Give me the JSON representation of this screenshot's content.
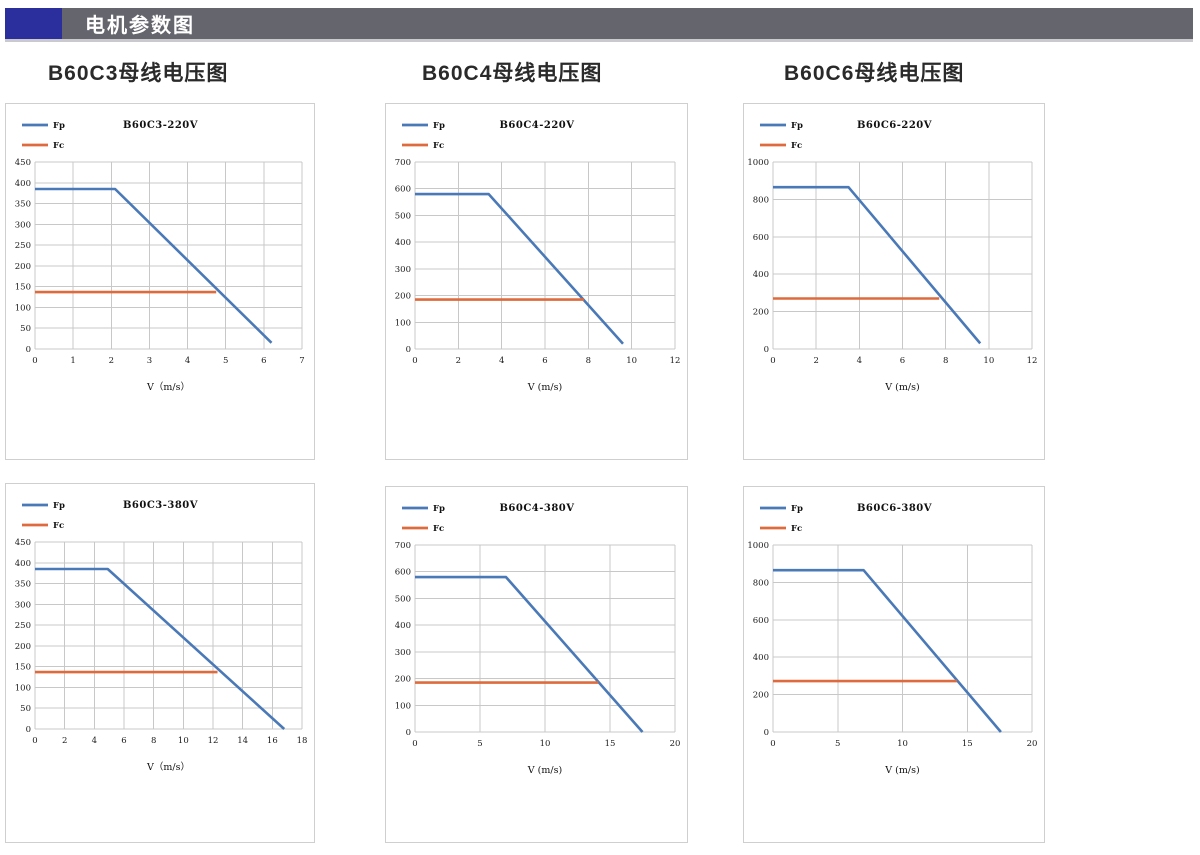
{
  "header": {
    "title": "电机参数图",
    "badge_color": "#2A2F9D",
    "bar_color": "#65656D"
  },
  "sections": [
    {
      "title": "B60C3母线电压图"
    },
    {
      "title": "B60C4母线电压图"
    },
    {
      "title": "B60C6母线电压图"
    }
  ],
  "theme": {
    "fp_color": "#4A79B8",
    "fc_color": "#DD6B3D",
    "grid_color": "#c8c8c8",
    "panel_border": "#cfcfcf"
  },
  "chart_data": [
    {
      "type": "line",
      "title": "B60C3-220V",
      "xlabel": "V（m/s）",
      "xlim": [
        0,
        7
      ],
      "ylim": [
        0,
        450
      ],
      "xticks": [
        0,
        1,
        2,
        3,
        4,
        5,
        6,
        7
      ],
      "yticks": [
        0,
        50,
        100,
        150,
        200,
        250,
        300,
        350,
        400,
        450
      ],
      "grid": true,
      "legend_position": "top-left",
      "series": [
        {
          "name": "Fp",
          "color": "#4A79B8",
          "points": [
            [
              0,
              385
            ],
            [
              2.1,
              385
            ],
            [
              6.2,
              15
            ]
          ]
        },
        {
          "name": "Fc",
          "color": "#DD6B3D",
          "points": [
            [
              0,
              137
            ],
            [
              4.75,
              137
            ]
          ]
        }
      ]
    },
    {
      "type": "line",
      "title": "B60C4-220V",
      "xlabel": "V (m/s)",
      "xlim": [
        0,
        12
      ],
      "ylim": [
        0,
        700
      ],
      "xticks": [
        0,
        2,
        4,
        6,
        8,
        10,
        12
      ],
      "yticks": [
        0,
        100,
        200,
        300,
        400,
        500,
        600,
        700
      ],
      "grid": true,
      "legend_position": "top-left",
      "series": [
        {
          "name": "Fp",
          "color": "#4A79B8",
          "points": [
            [
              0,
              580
            ],
            [
              3.4,
              580
            ],
            [
              9.6,
              20
            ]
          ]
        },
        {
          "name": "Fc",
          "color": "#DD6B3D",
          "points": [
            [
              0,
              185
            ],
            [
              7.8,
              185
            ]
          ]
        }
      ]
    },
    {
      "type": "line",
      "title": "B60C6-220V",
      "xlabel": "V (m/s)",
      "xlim": [
        0,
        12
      ],
      "ylim": [
        0,
        1000
      ],
      "xticks": [
        0,
        2,
        4,
        6,
        8,
        10,
        12
      ],
      "yticks": [
        0,
        200,
        400,
        600,
        800,
        1000
      ],
      "grid": true,
      "legend_position": "top-left",
      "series": [
        {
          "name": "Fp",
          "color": "#4A79B8",
          "points": [
            [
              0,
              865
            ],
            [
              3.5,
              865
            ],
            [
              9.6,
              30
            ]
          ]
        },
        {
          "name": "Fc",
          "color": "#DD6B3D",
          "points": [
            [
              0,
              270
            ],
            [
              7.7,
              270
            ]
          ]
        }
      ]
    },
    {
      "type": "line",
      "title": "B60C3-380V",
      "xlabel": "V（m/s）",
      "xlim": [
        0,
        18
      ],
      "ylim": [
        0,
        450
      ],
      "xticks": [
        0,
        2,
        4,
        6,
        8,
        10,
        12,
        14,
        16,
        18
      ],
      "yticks": [
        0,
        50,
        100,
        150,
        200,
        250,
        300,
        350,
        400,
        450
      ],
      "grid": true,
      "legend_position": "top-left",
      "series": [
        {
          "name": "Fp",
          "color": "#4A79B8",
          "points": [
            [
              0,
              385
            ],
            [
              4.9,
              385
            ],
            [
              16.8,
              0
            ]
          ]
        },
        {
          "name": "Fc",
          "color": "#DD6B3D",
          "points": [
            [
              0,
              137
            ],
            [
              12.3,
              137
            ]
          ]
        }
      ]
    },
    {
      "type": "line",
      "title": "B60C4-380V",
      "xlabel": "V (m/s)",
      "xlim": [
        0,
        20
      ],
      "ylim": [
        0,
        700
      ],
      "xticks": [
        0,
        5,
        10,
        15,
        20
      ],
      "yticks": [
        0,
        100,
        200,
        300,
        400,
        500,
        600,
        700
      ],
      "grid": true,
      "legend_position": "top-left",
      "series": [
        {
          "name": "Fp",
          "color": "#4A79B8",
          "points": [
            [
              0,
              580
            ],
            [
              7.0,
              580
            ],
            [
              17.5,
              0
            ]
          ]
        },
        {
          "name": "Fc",
          "color": "#DD6B3D",
          "points": [
            [
              0,
              185
            ],
            [
              14.1,
              185
            ]
          ]
        }
      ]
    },
    {
      "type": "line",
      "title": "B60C6-380V",
      "xlabel": "V (m/s)",
      "xlim": [
        0,
        20
      ],
      "ylim": [
        0,
        1000
      ],
      "xticks": [
        0,
        5,
        10,
        15,
        20
      ],
      "yticks": [
        0,
        200,
        400,
        600,
        800,
        1000
      ],
      "grid": true,
      "legend_position": "top-left",
      "series": [
        {
          "name": "Fp",
          "color": "#4A79B8",
          "points": [
            [
              0,
              865
            ],
            [
              7.0,
              865
            ],
            [
              17.6,
              0
            ]
          ]
        },
        {
          "name": "Fc",
          "color": "#DD6B3D",
          "points": [
            [
              0,
              272
            ],
            [
              14.2,
              272
            ]
          ]
        }
      ]
    }
  ]
}
